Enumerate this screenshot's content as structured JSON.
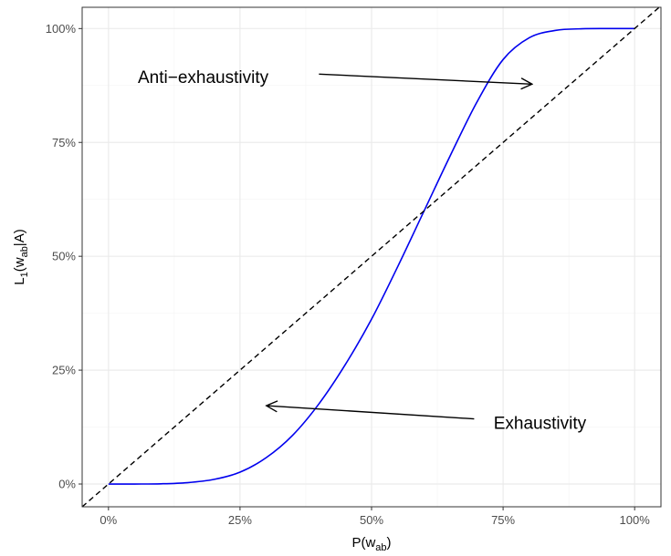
{
  "chart_data": {
    "type": "line",
    "xlabel": {
      "base": "P(w",
      "sub": "ab",
      "tail": ")"
    },
    "ylabel": {
      "base": "L",
      "sub1": "1",
      "mid": "(w",
      "sub2": "ab",
      "tail": "|A)"
    },
    "xlim": [
      -0.05,
      1.05
    ],
    "ylim": [
      -0.05,
      1.0467
    ],
    "x_ticks": [
      0,
      0.25,
      0.5,
      0.75,
      1
    ],
    "x_tick_labels": [
      "0%",
      "25%",
      "50%",
      "75%",
      "100%"
    ],
    "y_ticks": [
      0,
      0.25,
      0.5,
      0.75,
      1
    ],
    "y_tick_labels": [
      "0%",
      "25%",
      "50%",
      "75%",
      "100%"
    ],
    "grid": true,
    "series": [
      {
        "style": "solid",
        "color": "#0000ee",
        "x": [
          0,
          0.05,
          0.1,
          0.15,
          0.2,
          0.25,
          0.3,
          0.35,
          0.4,
          0.45,
          0.5,
          0.55,
          0.6,
          0.65,
          0.7,
          0.75,
          0.8,
          0.85,
          0.9,
          0.95,
          1
        ],
        "y": [
          0,
          0,
          0.0005,
          0.003,
          0.01,
          0.026,
          0.058,
          0.107,
          0.176,
          0.262,
          0.362,
          0.478,
          0.6,
          0.722,
          0.838,
          0.932,
          0.98,
          0.996,
          0.9995,
          1,
          1
        ]
      },
      {
        "style": "dashed",
        "color": "#000000",
        "x": [
          -0.05,
          1.05
        ],
        "y": [
          -0.05,
          1.05
        ]
      }
    ],
    "annotations": [
      {
        "text": "Anti−exhaustivity",
        "text_x": 0.18,
        "text_y": 0.895,
        "anchor": "middle",
        "arrow_from": [
          0.4,
          0.9
        ],
        "arrow_to": [
          0.805,
          0.878
        ]
      },
      {
        "text": "Exhaustivity",
        "text_x": 0.82,
        "text_y": 0.135,
        "anchor": "middle",
        "arrow_from": [
          0.695,
          0.143
        ],
        "arrow_to": [
          0.3,
          0.172
        ]
      }
    ]
  }
}
